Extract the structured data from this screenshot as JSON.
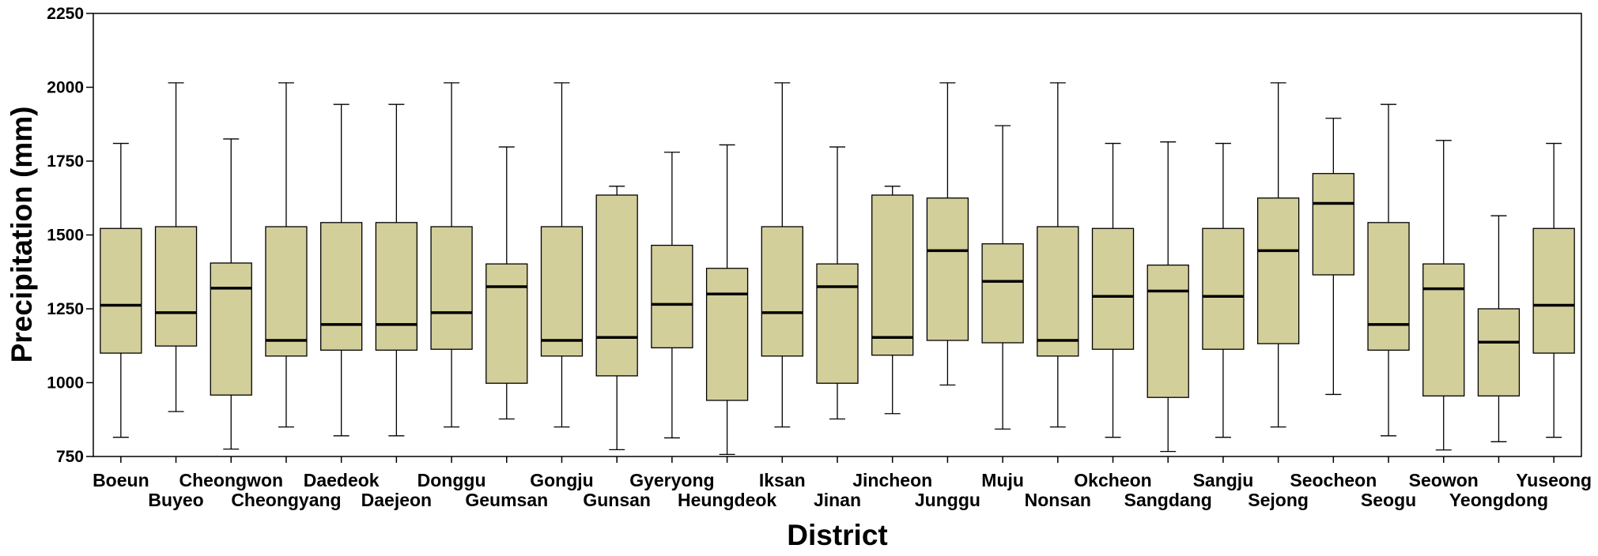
{
  "chart_data": {
    "type": "boxplot",
    "xlabel": "District",
    "ylabel": "Precipitation (mm)",
    "ylim": [
      750,
      2250
    ],
    "yticks": [
      750,
      1000,
      1250,
      1500,
      1750,
      2000,
      2250
    ],
    "grid": false,
    "box_color": "#D3CF9B",
    "categories": [
      "Boeun",
      "Buyeo",
      "Cheongwon",
      "Cheongyang",
      "Daedeok",
      "Daejeon",
      "Donggu",
      "Geumsan",
      "Gongju",
      "Gunsan",
      "Gyeryong",
      "Heungdeok",
      "Iksan",
      "Jinan",
      "Jincheon",
      "Junggu",
      "Muju",
      "Nonsan",
      "Okcheon",
      "Sangdang",
      "Sangju",
      "Sejong",
      "Seocheon",
      "Seogu",
      "Seowon",
      "Yeongdong",
      "Yuseong"
    ],
    "boxes": [
      {
        "min": 815,
        "q1": 1100,
        "median": 1262,
        "q3": 1522,
        "max": 1810
      },
      {
        "min": 902,
        "q1": 1124,
        "median": 1237,
        "q3": 1528,
        "max": 2015
      },
      {
        "min": 775,
        "q1": 958,
        "median": 1320,
        "q3": 1405,
        "max": 1825
      },
      {
        "min": 850,
        "q1": 1090,
        "median": 1143,
        "q3": 1528,
        "max": 2015
      },
      {
        "min": 820,
        "q1": 1110,
        "median": 1197,
        "q3": 1542,
        "max": 1942
      },
      {
        "min": 820,
        "q1": 1110,
        "median": 1197,
        "q3": 1542,
        "max": 1942
      },
      {
        "min": 850,
        "q1": 1113,
        "median": 1237,
        "q3": 1528,
        "max": 2015
      },
      {
        "min": 877,
        "q1": 998,
        "median": 1325,
        "q3": 1402,
        "max": 1798
      },
      {
        "min": 850,
        "q1": 1090,
        "median": 1143,
        "q3": 1528,
        "max": 2015
      },
      {
        "min": 773,
        "q1": 1023,
        "median": 1153,
        "q3": 1635,
        "max": 1665
      },
      {
        "min": 813,
        "q1": 1118,
        "median": 1265,
        "q3": 1465,
        "max": 1780
      },
      {
        "min": 757,
        "q1": 940,
        "median": 1300,
        "q3": 1387,
        "max": 1805
      },
      {
        "min": 850,
        "q1": 1090,
        "median": 1237,
        "q3": 1528,
        "max": 2015
      },
      {
        "min": 877,
        "q1": 998,
        "median": 1325,
        "q3": 1402,
        "max": 1798
      },
      {
        "min": 895,
        "q1": 1093,
        "median": 1153,
        "q3": 1635,
        "max": 1665
      },
      {
        "min": 992,
        "q1": 1143,
        "median": 1447,
        "q3": 1625,
        "max": 2015
      },
      {
        "min": 843,
        "q1": 1135,
        "median": 1343,
        "q3": 1470,
        "max": 1870
      },
      {
        "min": 850,
        "q1": 1090,
        "median": 1143,
        "q3": 1528,
        "max": 2015
      },
      {
        "min": 815,
        "q1": 1113,
        "median": 1292,
        "q3": 1522,
        "max": 1810
      },
      {
        "min": 767,
        "q1": 950,
        "median": 1310,
        "q3": 1398,
        "max": 1815
      },
      {
        "min": 815,
        "q1": 1113,
        "median": 1292,
        "q3": 1522,
        "max": 1810
      },
      {
        "min": 850,
        "q1": 1132,
        "median": 1447,
        "q3": 1625,
        "max": 2015
      },
      {
        "min": 960,
        "q1": 1365,
        "median": 1607,
        "q3": 1708,
        "max": 1895
      },
      {
        "min": 820,
        "q1": 1110,
        "median": 1197,
        "q3": 1542,
        "max": 1942
      },
      {
        "min": 772,
        "q1": 955,
        "median": 1318,
        "q3": 1402,
        "max": 1820
      },
      {
        "min": 800,
        "q1": 955,
        "median": 1137,
        "q3": 1250,
        "max": 1565
      },
      {
        "min": 815,
        "q1": 1100,
        "median": 1262,
        "q3": 1522,
        "max": 1810
      }
    ]
  }
}
